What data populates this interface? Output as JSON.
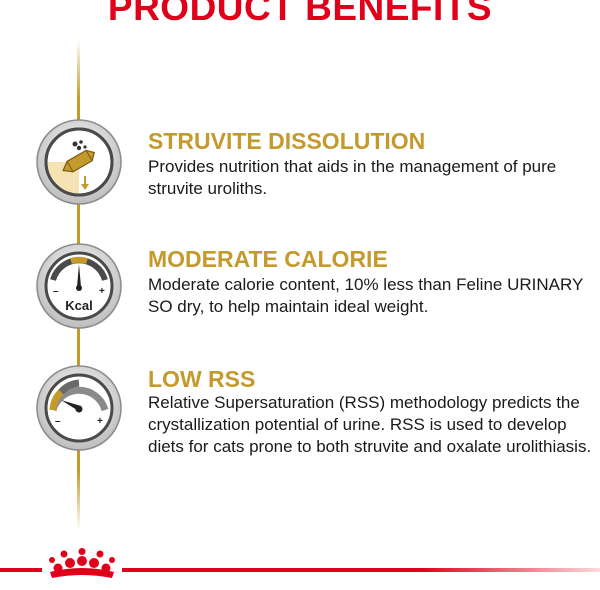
{
  "header": {
    "title": "PRODUCT BENEFITS"
  },
  "benefits": [
    {
      "title": "STRUVITE DISSOLUTION",
      "text": "Provides nutrition that aids in the management of pure struvite uroliths.",
      "icon": "struvite-crystal-icon"
    },
    {
      "title": "MODERATE CALORIE",
      "text": "Moderate calorie content, 10% less than Feline URINARY SO dry, to help maintain ideal weight.",
      "icon": "kcal-gauge-icon",
      "icon_label": "Kcal"
    },
    {
      "title": "LOW RSS",
      "text": "Relative Supersaturation (RSS) methodology predicts the crystallization potential of urine. RSS is used to develop diets for cats prone to both struvite and oxalate urolithiasis.",
      "icon": "rss-gauge-icon"
    }
  ],
  "colors": {
    "title_red": "#e1001a",
    "gold": "#c49a2c",
    "text": "#1a1a1a",
    "icon_gray": "#4a4a4a"
  },
  "footer": {
    "logo": "royal-canin-crown-icon"
  }
}
